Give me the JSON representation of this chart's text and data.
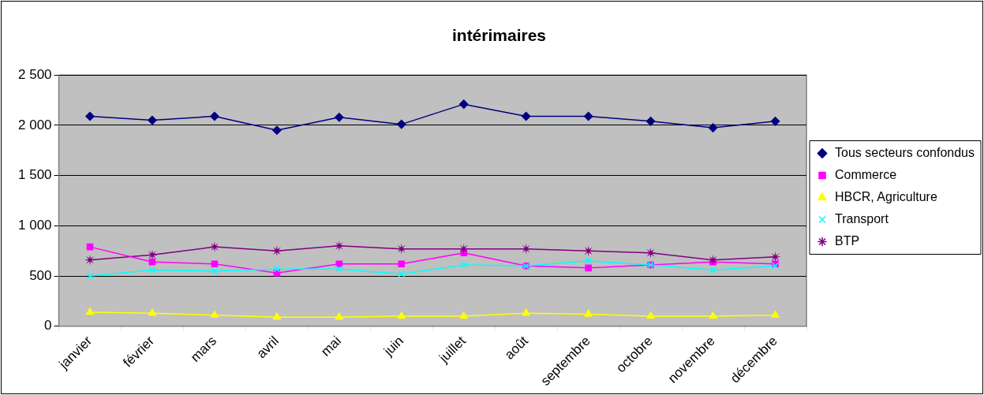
{
  "chart_data": {
    "type": "line",
    "title": "intérimaires",
    "categories": [
      "janvier",
      "février",
      "mars",
      "avril",
      "mai",
      "juin",
      "juillet",
      "août",
      "septembre",
      "octobre",
      "novembre",
      "décembre"
    ],
    "series": [
      {
        "name": "Tous secteurs confondus",
        "color": "#000080",
        "marker": "diamond",
        "values": [
          2090,
          2050,
          2090,
          1950,
          2080,
          2010,
          2210,
          2090,
          2090,
          2040,
          1975,
          2040
        ]
      },
      {
        "name": "Commerce",
        "color": "#ff00ff",
        "marker": "square",
        "values": [
          790,
          640,
          620,
          530,
          620,
          620,
          730,
          600,
          580,
          610,
          640,
          620
        ]
      },
      {
        "name": "HBCR, Agriculture",
        "color": "#ffff00",
        "marker": "triangle",
        "values": [
          140,
          130,
          110,
          90,
          90,
          100,
          100,
          130,
          120,
          100,
          100,
          110
        ]
      },
      {
        "name": "Transport",
        "color": "#00ffff",
        "marker": "cross",
        "values": [
          500,
          560,
          550,
          570,
          570,
          520,
          610,
          600,
          650,
          610,
          560,
          600
        ]
      },
      {
        "name": "BTP",
        "color": "#800080",
        "marker": "star",
        "values": [
          660,
          710,
          790,
          750,
          800,
          770,
          770,
          770,
          750,
          730,
          660,
          690
        ]
      }
    ],
    "ylim": [
      0,
      2500
    ],
    "yticks": [
      0,
      500,
      {
        "value": 1000,
        "label": "1 000"
      },
      {
        "value": 1500,
        "label": "1 500"
      },
      {
        "value": 2000,
        "label": "2 000"
      },
      {
        "value": 2500,
        "label": "2 500"
      }
    ],
    "grid": "y",
    "legend": "right",
    "line_style": "solid"
  }
}
